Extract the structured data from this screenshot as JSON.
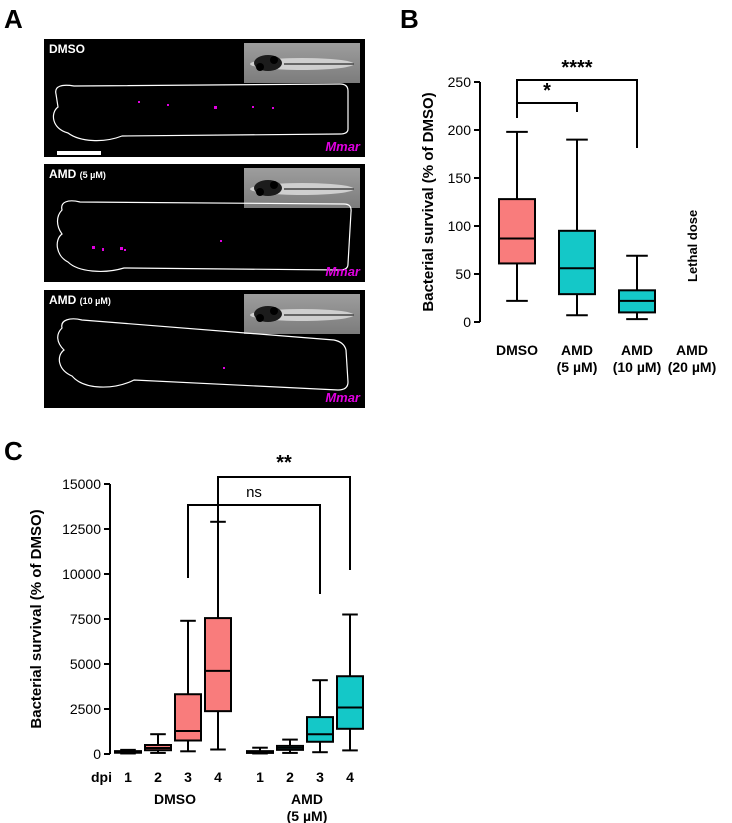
{
  "panels": {
    "a_letter": "A",
    "b_letter": "B",
    "c_letter": "C"
  },
  "micrographs": [
    {
      "label": "DMSO",
      "dose": "",
      "bacteria_label": "Mmar"
    },
    {
      "label": "AMD",
      "dose": "(5 µM)",
      "bacteria_label": "Mmar"
    },
    {
      "label": "AMD",
      "dose": "(10 µM)",
      "bacteria_label": "Mmar"
    }
  ],
  "colors": {
    "dmso": "#f97c7c",
    "amd": "#14c8c8",
    "bacteria": "#e000e0"
  },
  "chart_data": [
    {
      "type": "box",
      "ylabel": "Bacterial survival (% of DMSO)",
      "ylim": [
        0,
        250
      ],
      "yticks": [
        0,
        50,
        100,
        150,
        200,
        250
      ],
      "categories": [
        [
          "DMSO"
        ],
        [
          "AMD",
          "(5 µM)"
        ],
        [
          "AMD",
          "(10 µM)"
        ],
        [
          "AMD",
          "(20 µM)"
        ]
      ],
      "boxes": [
        {
          "min": 22,
          "q1": 61,
          "median": 87,
          "q3": 128,
          "max": 198,
          "color": "dmso"
        },
        {
          "min": 7,
          "q1": 29,
          "median": 56,
          "q3": 95,
          "max": 190,
          "color": "amd"
        },
        {
          "min": 3,
          "q1": 10,
          "median": 22,
          "q3": 33,
          "max": 69,
          "color": "amd"
        },
        null
      ],
      "annotations": {
        "lethal_dose": "Lethal dose"
      },
      "significance": [
        {
          "from": 0,
          "to": 1,
          "label": "*"
        },
        {
          "from": 0,
          "to": 2,
          "label": "****"
        }
      ]
    },
    {
      "type": "box",
      "ylabel": "Bacterial survival (% of DMSO)",
      "ylim": [
        0,
        15000
      ],
      "yticks": [
        0,
        2500,
        5000,
        7500,
        10000,
        12500,
        15000
      ],
      "x_axis_prefix": "dpi",
      "groups": [
        {
          "label": [
            "DMSO"
          ],
          "color": "dmso",
          "dpi": [
            "1",
            "2",
            "3",
            "4"
          ],
          "boxes": [
            {
              "min": 30,
              "q1": 70,
              "median": 110,
              "q3": 160,
              "max": 230
            },
            {
              "min": 60,
              "q1": 210,
              "median": 330,
              "q3": 500,
              "max": 1100
            },
            {
              "min": 150,
              "q1": 750,
              "median": 1280,
              "q3": 3320,
              "max": 7400
            },
            {
              "min": 250,
              "q1": 2380,
              "median": 4620,
              "q3": 7550,
              "max": 12900
            }
          ]
        },
        {
          "label": [
            "AMD",
            "(5 µM)"
          ],
          "color": "amd",
          "dpi": [
            "1",
            "2",
            "3",
            "4"
          ],
          "boxes": [
            {
              "min": 30,
              "q1": 60,
              "median": 100,
              "q3": 160,
              "max": 350
            },
            {
              "min": 60,
              "q1": 230,
              "median": 340,
              "q3": 450,
              "max": 800
            },
            {
              "min": 100,
              "q1": 680,
              "median": 1100,
              "q3": 2050,
              "max": 4100
            },
            {
              "min": 200,
              "q1": 1400,
              "median": 2580,
              "q3": 4320,
              "max": 7750
            }
          ]
        }
      ],
      "significance": [
        {
          "from_group": 0,
          "from_index": 2,
          "to_group": 1,
          "to_index": 2,
          "label": "ns"
        },
        {
          "from_group": 0,
          "from_index": 3,
          "to_group": 1,
          "to_index": 3,
          "label": "**"
        }
      ]
    }
  ]
}
